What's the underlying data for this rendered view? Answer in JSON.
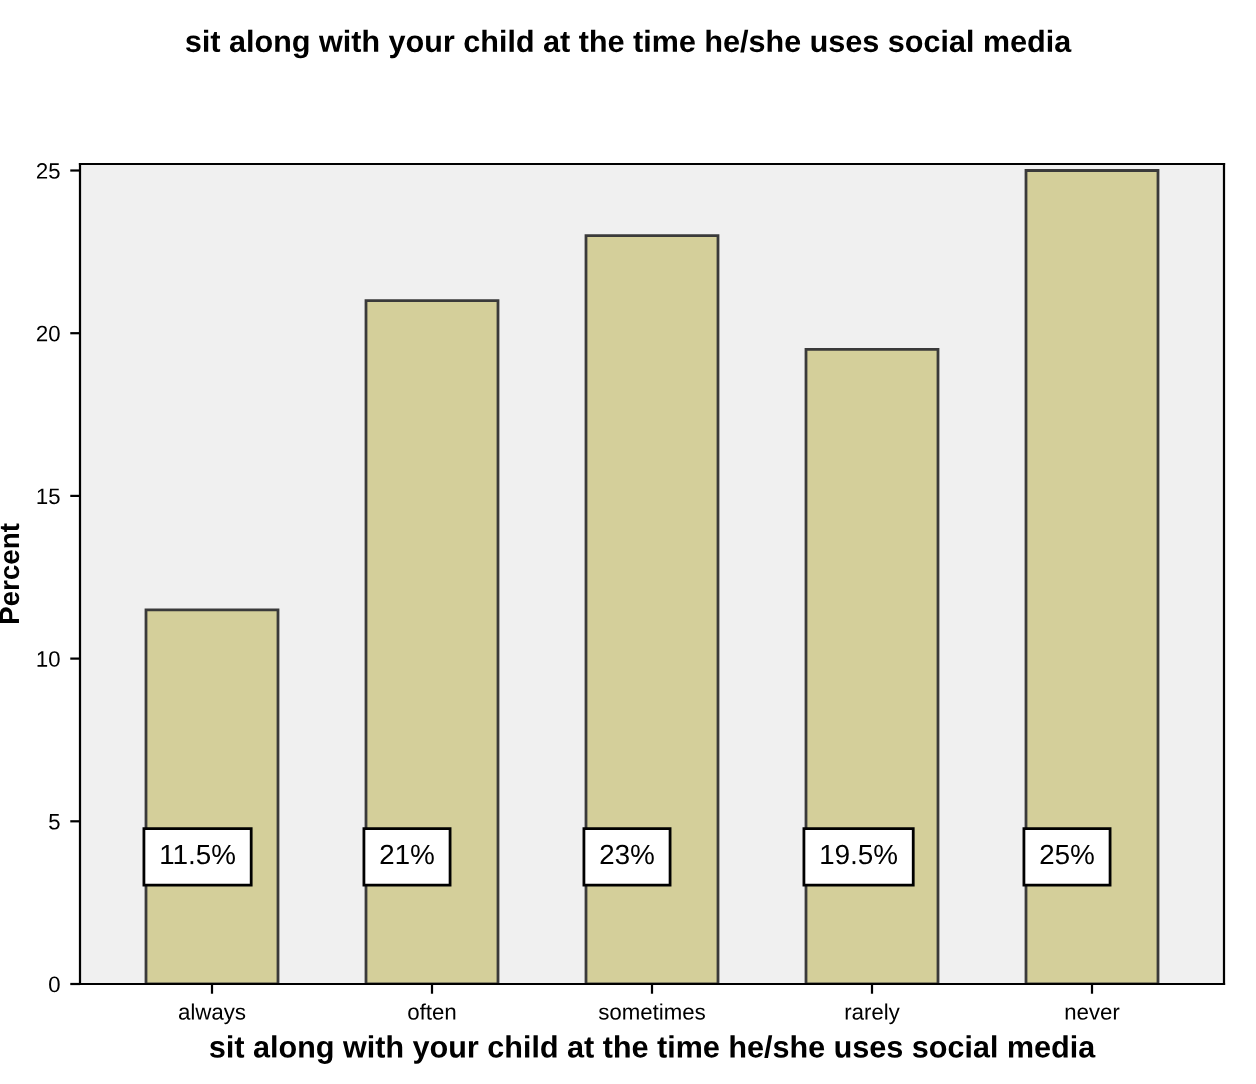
{
  "chart_data": {
    "type": "bar",
    "title": "sit along with your child at the time he/she uses social media",
    "xlabel": "sit along with your child at the time he/she uses social media",
    "ylabel": "Percent",
    "categories": [
      "always",
      "often",
      "sometimes",
      "rarely",
      "never"
    ],
    "values": [
      11.5,
      21,
      23,
      19.5,
      25
    ],
    "value_labels": [
      "11.5%",
      "21%",
      "23%",
      "19.5%",
      "25%"
    ],
    "color": "#d4cf9a",
    "ylim": [
      0,
      25.2
    ],
    "yticks": [
      0,
      5,
      10,
      15,
      20,
      25
    ],
    "grid": false,
    "legend": false
  }
}
